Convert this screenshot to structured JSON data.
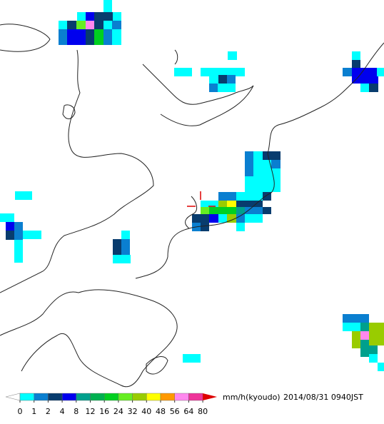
{
  "legend": {
    "ticks": [
      0,
      1,
      2,
      4,
      8,
      12,
      16,
      24,
      32,
      40,
      48,
      56,
      64,
      80
    ],
    "colors": [
      "#00ffff",
      "#0a7fd0",
      "#083c6e",
      "#0000ee",
      "#00a08c",
      "#00b050",
      "#00d020",
      "#66ee22",
      "#99cc00",
      "#ffff00",
      "#ff9900",
      "#ff88ee",
      "#ee3399"
    ],
    "under_color": "#ffffff",
    "over_color": "#dd0000",
    "unit": "mm/h(kyoudo)",
    "timestamp": "2014/08/31 0940JST"
  }
}
